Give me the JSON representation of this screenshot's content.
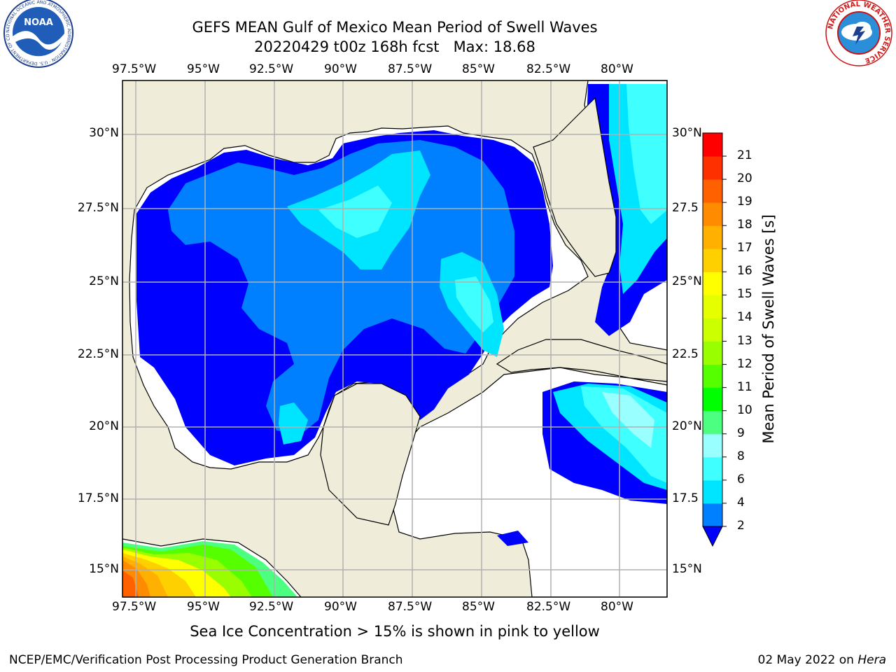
{
  "header": {
    "title": "GEFS MEAN Gulf of Mexico Mean Period of Swell Waves",
    "run": "20220429 t00z 168h fcst",
    "max_label": "Max: 18.68"
  },
  "map": {
    "lon_ticks": [
      "97.5°W",
      "95°W",
      "92.5°W",
      "90°W",
      "87.5°W",
      "85°W",
      "82.5°W",
      "80°W"
    ],
    "lat_ticks_left": [
      "30°N",
      "27.5°N",
      "25°N",
      "22.5°N",
      "20°N",
      "17.5°N",
      "15°N"
    ],
    "lat_ticks_right": [
      "30°N",
      "27.5",
      "25°N",
      "22.5",
      "20°N",
      "17.5",
      "15°N"
    ],
    "colors": {
      "land": "#efedda",
      "ocean_blank": "#ffffff",
      "coast": "#000000",
      "grid": "#b0b0b0"
    }
  },
  "colorbar": {
    "title": "Mean Period of Swell Waves [s]",
    "levels": [
      "2",
      "4",
      "6",
      "8",
      "9",
      "10",
      "11",
      "12",
      "13",
      "14",
      "15",
      "16",
      "17",
      "18",
      "19",
      "20",
      "21"
    ],
    "colors": [
      "#0080ff",
      "#00e5ff",
      "#40ffff",
      "#99ffff",
      "#4dff80",
      "#00ff00",
      "#55ff00",
      "#99ff00",
      "#ccff00",
      "#e5ff00",
      "#ffff00",
      "#ffd000",
      "#ffb000",
      "#ff8c00",
      "#ff6000",
      "#ff3000",
      "#ff0000"
    ],
    "under_color": "#0000ff"
  },
  "note": "Sea Ice Concentration > 15% is shown in pink to yellow",
  "footer": {
    "left": "NCEP/EMC/Verification Post Processing Product Generation Branch",
    "date": "02 May 2022 on",
    "machine": "Hera"
  },
  "logos": {
    "noaa_text": "NOAA",
    "noaa_ring": "NATIONAL OCEANIC AND ATMOSPHERIC ADMINISTRATION · U.S. DEPARTMENT OF COMMERCE",
    "nws_ring": "NATIONAL WEATHER SERVICE"
  }
}
